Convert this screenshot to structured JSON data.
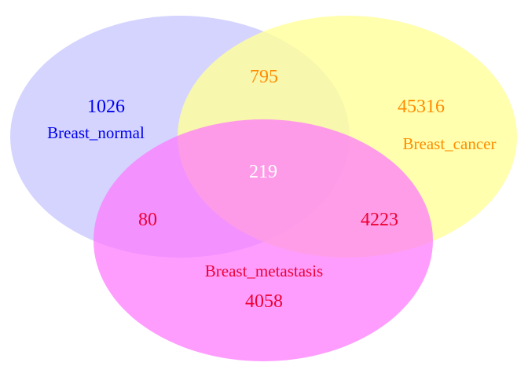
{
  "venn": {
    "sets": {
      "normal": {
        "label": "Breast_normal",
        "fill": "#ccccff",
        "label_color": "#0000ee"
      },
      "cancer": {
        "label": "Breast_cancer",
        "fill": "#ffff99",
        "label_color": "#ff8c00"
      },
      "metastasis": {
        "label": "Breast_metastasis",
        "fill": "#ff77ff",
        "label_color": "#ee0033"
      }
    },
    "counts": {
      "normal_only": "1026",
      "cancer_only": "45316",
      "metastasis_only": "4058",
      "normal_cancer": "795",
      "normal_metastasis": "80",
      "cancer_metastasis": "4223",
      "all_three": "219"
    },
    "count_colors": {
      "normal_only": "#0000ee",
      "cancer_only": "#ff8c00",
      "metastasis_only": "#ee0033",
      "normal_cancer": "#ff8c00",
      "normal_metastasis": "#ee0033",
      "cancer_metastasis": "#ee0033",
      "all_three": "#ffffff"
    }
  }
}
